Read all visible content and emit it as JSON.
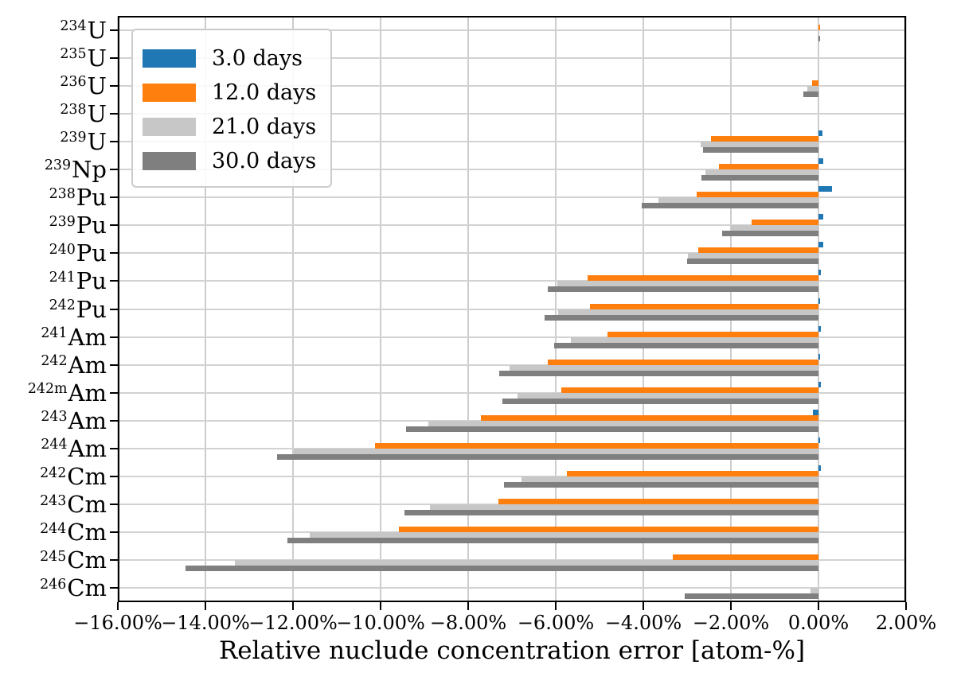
{
  "chart_data": {
    "type": "bar",
    "orientation": "horizontal",
    "title": "",
    "xlabel": "Relative nuclude concentration error [atom-%]",
    "ylabel": "",
    "xlim": [
      -16,
      2
    ],
    "grid": true,
    "legend_position": "upper left",
    "x_ticks": [
      -16,
      -14,
      -12,
      -10,
      -8,
      -6,
      -4,
      -2,
      0,
      2
    ],
    "x_tick_labels": [
      "−16.00%",
      "−14.00%",
      "−12.00%",
      "−10.00%",
      "−8.00%",
      "−6.00%",
      "−4.00%",
      "−2.00%",
      "0.00%",
      "2.00%"
    ],
    "categories": [
      {
        "sup": "234",
        "base": "U"
      },
      {
        "sup": "235",
        "base": "U"
      },
      {
        "sup": "236",
        "base": "U"
      },
      {
        "sup": "238",
        "base": "U"
      },
      {
        "sup": "239",
        "base": "U"
      },
      {
        "sup": "239",
        "base": "Np"
      },
      {
        "sup": "238",
        "base": "Pu"
      },
      {
        "sup": "239",
        "base": "Pu"
      },
      {
        "sup": "240",
        "base": "Pu"
      },
      {
        "sup": "241",
        "base": "Pu"
      },
      {
        "sup": "242",
        "base": "Pu"
      },
      {
        "sup": "241",
        "base": "Am"
      },
      {
        "sup": "242",
        "base": "Am"
      },
      {
        "sup": "242m",
        "base": "Am"
      },
      {
        "sup": "243",
        "base": "Am"
      },
      {
        "sup": "244",
        "base": "Am"
      },
      {
        "sup": "242",
        "base": "Cm"
      },
      {
        "sup": "243",
        "base": "Cm"
      },
      {
        "sup": "244",
        "base": "Cm"
      },
      {
        "sup": "245",
        "base": "Cm"
      },
      {
        "sup": "246",
        "base": "Cm"
      }
    ],
    "series": [
      {
        "name": "3.0 days",
        "color": "#1f77b4",
        "values": [
          0,
          0,
          0,
          0,
          0.09,
          0.1,
          0.3,
          0.11,
          0.11,
          0.05,
          0.03,
          0.06,
          0.04,
          0.05,
          -0.12,
          0.04,
          0.05,
          0,
          0,
          0,
          0
        ]
      },
      {
        "name": "12.0 days",
        "color": "#ff7f0e",
        "values": [
          0.02,
          0,
          -0.15,
          0,
          -2.45,
          -2.28,
          -2.79,
          -1.52,
          -2.75,
          -5.27,
          -5.22,
          -4.82,
          -6.18,
          -5.88,
          -7.71,
          -10.12,
          -5.75,
          -7.31,
          -9.59,
          -3.33,
          0
        ]
      },
      {
        "name": "21.0 days",
        "color": "#c7c7c7",
        "values": [
          0,
          0,
          -0.26,
          0,
          -2.69,
          -2.59,
          -3.66,
          -2.0,
          -2.99,
          -5.97,
          -5.94,
          -5.65,
          -7.06,
          -6.87,
          -8.91,
          -11.98,
          -6.79,
          -8.87,
          -11.62,
          -13.33,
          -0.18
        ]
      },
      {
        "name": "30.0 days",
        "color": "#7f7f7f",
        "values": [
          0.04,
          0,
          -0.34,
          0,
          -2.64,
          -2.67,
          -4.03,
          -2.2,
          -3.0,
          -6.19,
          -6.25,
          -6.04,
          -7.3,
          -7.21,
          -9.42,
          -12.36,
          -7.18,
          -9.45,
          -12.12,
          -14.45,
          -3.06
        ]
      }
    ]
  }
}
